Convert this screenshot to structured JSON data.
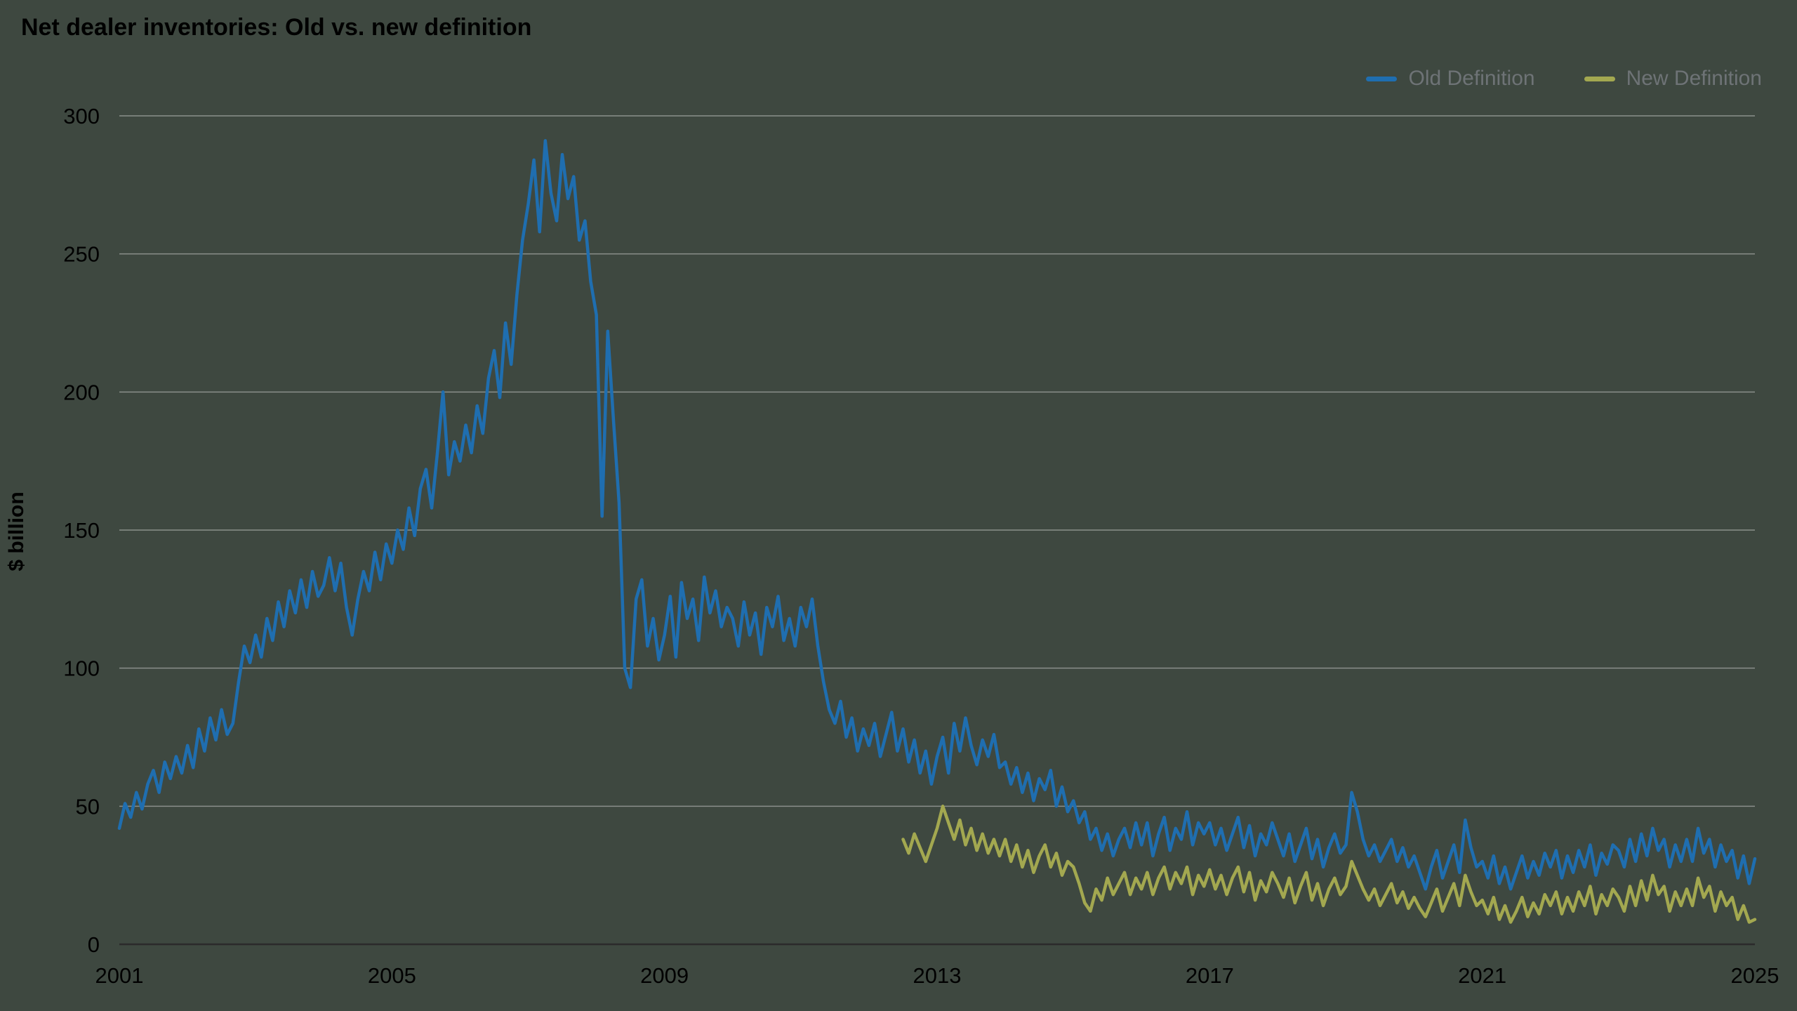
{
  "title": "Net dealer inventories: Old vs. new definition",
  "y_axis_label": "$ billion",
  "legend": [
    {
      "label": "Old Definition",
      "color": "#1f6eb0"
    },
    {
      "label": "New Definition",
      "color": "#a3a850"
    }
  ],
  "colors": {
    "background": "#3e4840",
    "text": "#000000",
    "legend_text": "#6e7376",
    "grid": "#8a8f8a",
    "axis": "#2b2b2b",
    "old_definition": "#1f6eb0",
    "new_definition": "#a3a850"
  },
  "chart_data": {
    "type": "line",
    "title": "Net dealer inventories: Old vs. new definition",
    "xlabel": "",
    "ylabel": "$ billion",
    "xlim": [
      2001,
      2025
    ],
    "ylim": [
      0,
      300
    ],
    "x_ticks": [
      2001,
      2005,
      2009,
      2013,
      2017,
      2021,
      2025
    ],
    "y_ticks": [
      0,
      50,
      100,
      150,
      200,
      250,
      300
    ],
    "grid": "horizontal",
    "legend_position": "top-right",
    "series": [
      {
        "name": "Old Definition",
        "color": "#1f6eb0",
        "x_start": 2001.0,
        "x_step": 0.0833333,
        "values": [
          42,
          51,
          46,
          55,
          49,
          58,
          63,
          55,
          66,
          60,
          68,
          62,
          72,
          64,
          78,
          70,
          82,
          74,
          85,
          76,
          80,
          95,
          108,
          102,
          112,
          104,
          118,
          110,
          124,
          115,
          128,
          120,
          132,
          122,
          135,
          126,
          130,
          140,
          128,
          138,
          122,
          112,
          125,
          135,
          128,
          142,
          132,
          145,
          138,
          150,
          143,
          158,
          148,
          165,
          172,
          158,
          178,
          200,
          170,
          182,
          175,
          188,
          178,
          195,
          185,
          205,
          215,
          198,
          225,
          210,
          235,
          255,
          268,
          284,
          258,
          291,
          272,
          262,
          286,
          270,
          278,
          255,
          262,
          240,
          228,
          155,
          222,
          190,
          160,
          100,
          93,
          125,
          132,
          108,
          118,
          103,
          112,
          126,
          104,
          131,
          118,
          125,
          110,
          133,
          120,
          128,
          115,
          122,
          118,
          108,
          124,
          112,
          120,
          105,
          122,
          115,
          126,
          110,
          118,
          108,
          122,
          115,
          125,
          108,
          95,
          85,
          80,
          88,
          75,
          82,
          70,
          78,
          72,
          80,
          68,
          76,
          84,
          70,
          78,
          66,
          74,
          62,
          70,
          58,
          68,
          75,
          62,
          80,
          70,
          82,
          72,
          65,
          74,
          68,
          76,
          64,
          66,
          58,
          64,
          55,
          62,
          52,
          60,
          56,
          63,
          50,
          57,
          48,
          52,
          44,
          48,
          38,
          42,
          34,
          40,
          32,
          38,
          42,
          35,
          44,
          36,
          44,
          32,
          40,
          46,
          34,
          42,
          38,
          48,
          36,
          44,
          40,
          44,
          36,
          42,
          34,
          40,
          46,
          35,
          43,
          32,
          40,
          36,
          44,
          38,
          32,
          40,
          30,
          36,
          42,
          31,
          38,
          28,
          35,
          40,
          33,
          36,
          55,
          48,
          38,
          32,
          36,
          30,
          34,
          38,
          30,
          35,
          28,
          32,
          26,
          20,
          28,
          34,
          24,
          30,
          36,
          26,
          45,
          35,
          28,
          30,
          24,
          32,
          22,
          28,
          20,
          26,
          32,
          24,
          30,
          25,
          33,
          28,
          34,
          24,
          32,
          26,
          34,
          28,
          36,
          25,
          33,
          29,
          36,
          34,
          28,
          38,
          30,
          40,
          32,
          42,
          34,
          38,
          28,
          36,
          30,
          38,
          30,
          42,
          33,
          38,
          28,
          36,
          30,
          34,
          24,
          32,
          22,
          31
        ]
      },
      {
        "name": "New Definition",
        "color": "#a3a850",
        "x_start": 2012.5,
        "x_step": 0.0833333,
        "values": [
          38,
          33,
          40,
          35,
          30,
          36,
          42,
          50,
          44,
          38,
          45,
          36,
          42,
          34,
          40,
          33,
          38,
          32,
          38,
          30,
          36,
          28,
          34,
          26,
          32,
          36,
          28,
          33,
          25,
          30,
          28,
          22,
          15,
          12,
          20,
          16,
          24,
          18,
          22,
          26,
          18,
          24,
          20,
          26,
          18,
          24,
          28,
          20,
          26,
          22,
          28,
          18,
          25,
          21,
          27,
          20,
          25,
          18,
          24,
          28,
          19,
          26,
          16,
          23,
          19,
          26,
          22,
          17,
          24,
          15,
          21,
          26,
          16,
          22,
          14,
          20,
          24,
          18,
          21,
          30,
          25,
          20,
          16,
          20,
          14,
          18,
          22,
          15,
          19,
          13,
          17,
          13,
          10,
          15,
          20,
          12,
          17,
          22,
          14,
          25,
          19,
          14,
          16,
          11,
          17,
          9,
          14,
          8,
          12,
          17,
          10,
          15,
          11,
          18,
          14,
          19,
          11,
          17,
          12,
          19,
          14,
          21,
          11,
          18,
          14,
          20,
          17,
          12,
          21,
          14,
          23,
          16,
          25,
          18,
          21,
          12,
          19,
          14,
          20,
          14,
          24,
          17,
          21,
          12,
          19,
          14,
          17,
          9,
          14,
          8,
          9
        ]
      }
    ]
  }
}
